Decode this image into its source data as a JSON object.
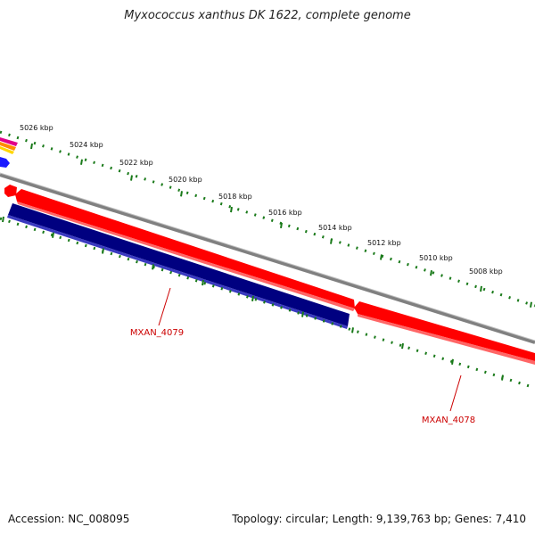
{
  "title": "Myxococcus xanthus DK 1622, complete genome",
  "footer": {
    "accession": "Accession: NC_008095",
    "summary": "Topology: circular; Length: 9,139,763 bp; Genes: 7,410"
  },
  "scale_labels": [
    "5026 kbp",
    "5024 kbp",
    "5022 kbp",
    "5020 kbp",
    "5018 kbp",
    "5016 kbp",
    "5014 kbp",
    "5012 kbp",
    "5010 kbp",
    "5008 kbp"
  ],
  "genes": [
    {
      "label": "MXAN_4079",
      "strand": "reverse",
      "color": "#000080"
    },
    {
      "label": "MXAN_4078",
      "strand": "forward",
      "color": "#ff0000"
    }
  ],
  "colors": {
    "forward_gene": "#ff0000",
    "reverse_gene": "#000080",
    "backbone": "#808080",
    "ticks": "#1a7a1a",
    "label_text": "#cc0000"
  }
}
